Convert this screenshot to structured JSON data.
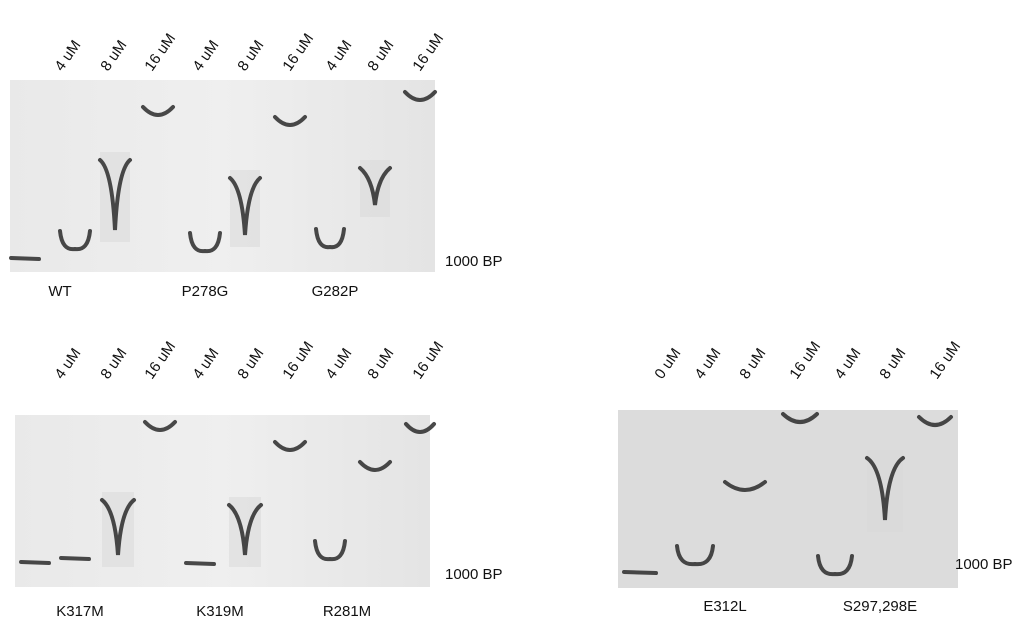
{
  "panels": [
    {
      "lanes": [
        "4 uM",
        "8 uM",
        "16 uM",
        "4 uM",
        "8 uM",
        "16 uM",
        "4 uM",
        "8 uM",
        "16 uM"
      ],
      "samples": [
        "WT",
        "P278G",
        "G282P"
      ],
      "marker": "1000 BP"
    },
    {
      "lanes": [
        "4 uM",
        "8 uM",
        "16 uM",
        "4 uM",
        "8 uM",
        "16 uM",
        "4 uM",
        "8 uM",
        "16 uM"
      ],
      "samples": [
        "K317M",
        "K319M",
        "R281M"
      ],
      "marker": "1000 BP"
    },
    {
      "lanes": [
        "0 uM",
        "4 uM",
        "8 uM",
        "16 uM",
        "4 uM",
        "8 uM",
        "16 uM"
      ],
      "samples": [
        "E312L",
        "S297,298E"
      ],
      "marker": "1000 BP"
    }
  ]
}
